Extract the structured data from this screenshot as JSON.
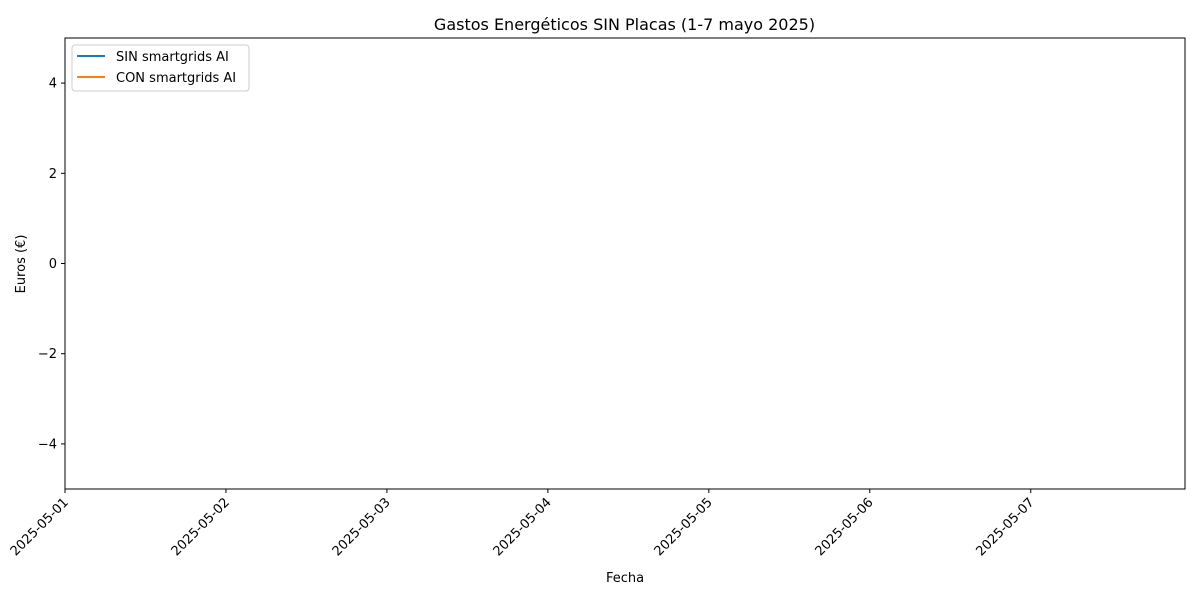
{
  "chart_data": {
    "type": "line",
    "title": "Gastos Energéticos SIN Placas (1-7 mayo 2025)",
    "xlabel": "Fecha",
    "ylabel": "Euros (€)",
    "x_ticks": [
      "2025-05-01",
      "2025-05-02",
      "2025-05-03",
      "2025-05-04",
      "2025-05-05",
      "2025-05-06",
      "2025-05-07"
    ],
    "xlim": [
      "2025-05-01",
      "2025-05-07 23:00"
    ],
    "y_ticks": [
      4,
      2,
      0,
      -2,
      -4
    ],
    "y_tick_labels": [
      "4",
      "2",
      "0",
      "−2",
      "−4"
    ],
    "ylim": [
      -5,
      5
    ],
    "grid": false,
    "legend_position": "upper-left",
    "series": [
      {
        "name": "SIN smartgrids AI",
        "color": "#1f77b4",
        "values": []
      },
      {
        "name": "CON smartgrids AI",
        "color": "#ff7f0e",
        "values": []
      }
    ]
  }
}
